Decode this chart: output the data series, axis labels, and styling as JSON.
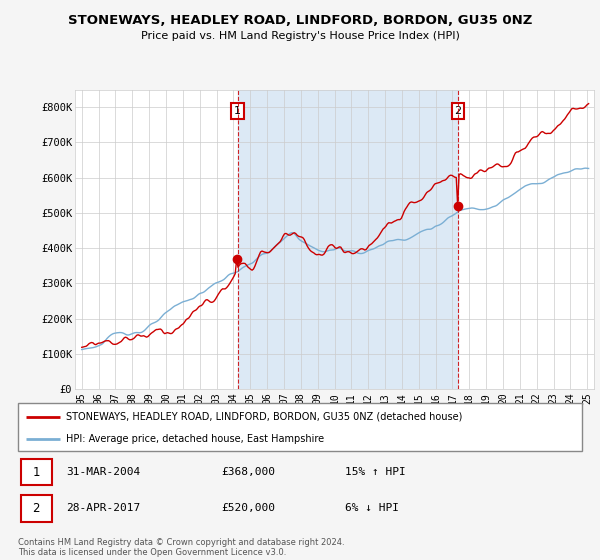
{
  "title": "STONEWAYS, HEADLEY ROAD, LINDFORD, BORDON, GU35 0NZ",
  "subtitle": "Price paid vs. HM Land Registry's House Price Index (HPI)",
  "ylim": [
    0,
    850000
  ],
  "yticks": [
    0,
    100000,
    200000,
    300000,
    400000,
    500000,
    600000,
    700000,
    800000
  ],
  "ytick_labels": [
    "£0",
    "£100K",
    "£200K",
    "£300K",
    "£400K",
    "£500K",
    "£600K",
    "£700K",
    "£800K"
  ],
  "hpi_color": "#7bafd4",
  "price_color": "#cc0000",
  "shade_color": "#dce9f5",
  "sale1_year": 2004.25,
  "sale2_year": 2017.33,
  "sale1_label": "31-MAR-2004",
  "sale1_price": "£368,000",
  "sale1_hpi": "15% ↑ HPI",
  "sale2_label": "28-APR-2017",
  "sale2_price": "£520,000",
  "sale2_hpi": "6% ↓ HPI",
  "sale1_value": 368000,
  "sale2_value": 520000,
  "legend_property": "STONEWAYS, HEADLEY ROAD, LINDFORD, BORDON, GU35 0NZ (detached house)",
  "legend_hpi": "HPI: Average price, detached house, East Hampshire",
  "footer": "Contains HM Land Registry data © Crown copyright and database right 2024.\nThis data is licensed under the Open Government Licence v3.0.",
  "background_color": "#f5f5f5",
  "plot_bg_color": "#ffffff"
}
